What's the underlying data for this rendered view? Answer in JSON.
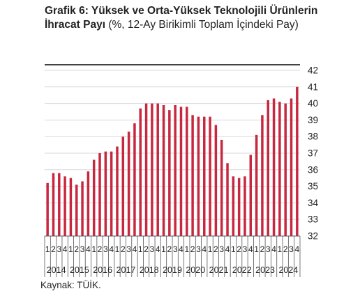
{
  "title": {
    "bold": "Grafik 6: Yüksek ve Orta-Yüksek Teknolojili Ürünlerin İhracat Payı",
    "regular": " (%, 12-Ay Birikimli Toplam İçindeki Pay)"
  },
  "source": "Kaynak: TÜİK.",
  "chart_data": {
    "type": "bar",
    "bar_color": "#c8283f",
    "grid_color": "#d9d9d9",
    "axis_color": "#555555",
    "ylim": [
      32,
      42
    ],
    "yticks": [
      "32",
      "33",
      "34",
      "35",
      "36",
      "37",
      "38",
      "39",
      "40",
      "41",
      "42"
    ],
    "quarter_labels": [
      "1",
      "2",
      "3",
      "4",
      "1",
      "2",
      "3",
      "4",
      "1",
      "2",
      "3",
      "4",
      "1",
      "2",
      "3",
      "4",
      "1",
      "2",
      "3",
      "4",
      "1",
      "2",
      "3",
      "4",
      "1",
      "2",
      "3",
      "4",
      "1",
      "2",
      "3",
      "4",
      "1",
      "2",
      "3",
      "4",
      "1",
      "2",
      "3",
      "4",
      "1",
      "2",
      "3",
      "4"
    ],
    "years": [
      "2014",
      "2015",
      "2016",
      "2017",
      "2018",
      "2019",
      "2020",
      "2021",
      "2022",
      "2023",
      "2024"
    ],
    "values": [
      35.2,
      35.8,
      35.8,
      35.6,
      35.5,
      35.1,
      35.3,
      35.9,
      36.6,
      37.0,
      37.1,
      37.1,
      37.4,
      38.0,
      38.3,
      38.8,
      39.7,
      40.0,
      40.0,
      40.0,
      39.9,
      39.6,
      39.9,
      39.8,
      39.8,
      39.3,
      39.2,
      39.2,
      39.2,
      38.7,
      37.8,
      36.4,
      35.6,
      35.5,
      35.6,
      36.9,
      38.1,
      39.3,
      40.2,
      40.3,
      40.1,
      40.0,
      40.3,
      41.0
    ]
  }
}
